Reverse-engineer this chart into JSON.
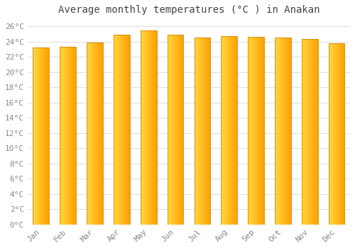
{
  "title": "Average monthly temperatures (°C ) in Anakan",
  "months": [
    "Jan",
    "Feb",
    "Mar",
    "Apr",
    "May",
    "Jun",
    "Jul",
    "Aug",
    "Sep",
    "Oct",
    "Nov",
    "Dec"
  ],
  "values": [
    23.2,
    23.3,
    23.9,
    24.9,
    25.4,
    24.9,
    24.5,
    24.7,
    24.6,
    24.5,
    24.3,
    23.8
  ],
  "ylim": [
    0,
    27
  ],
  "yticks": [
    0,
    2,
    4,
    6,
    8,
    10,
    12,
    14,
    16,
    18,
    20,
    22,
    24,
    26
  ],
  "bar_color_left": "#FFD740",
  "bar_color_right": "#FFA000",
  "bar_edge_color": "#CCAA00",
  "background_color": "#FFFFFF",
  "plot_bg_color": "#FFFFFF",
  "grid_color": "#DDDDDD",
  "title_fontsize": 10,
  "tick_fontsize": 8,
  "tick_color": "#888888",
  "title_color": "#444444",
  "bar_width": 0.6,
  "n_grad": 30
}
